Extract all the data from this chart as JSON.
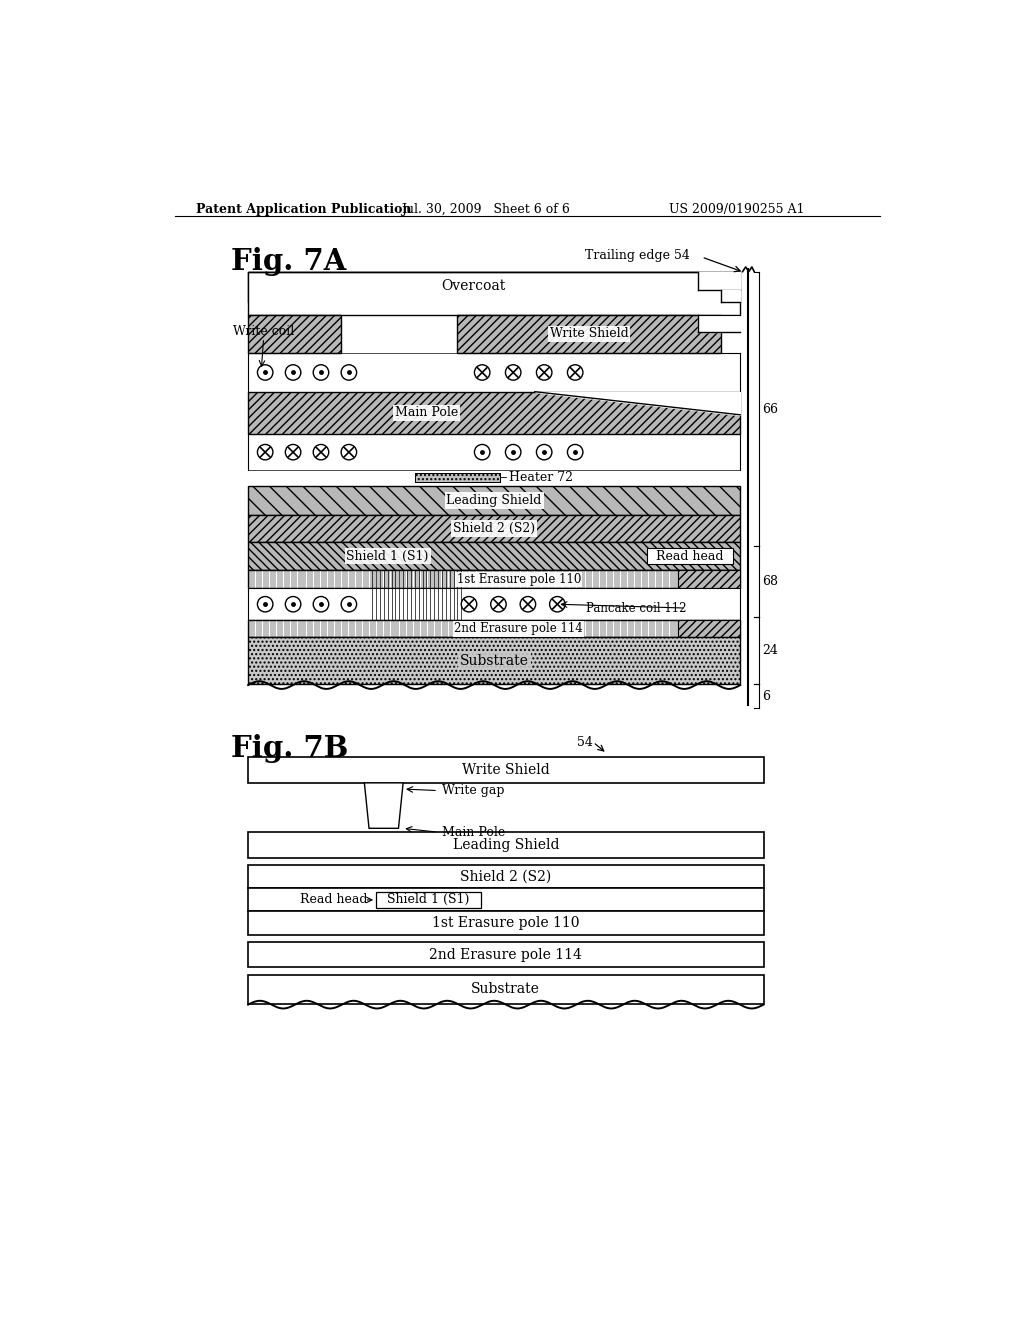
{
  "header_left": "Patent Application Publication",
  "header_mid": "Jul. 30, 2009   Sheet 6 of 6",
  "header_right": "US 2009/0190255 A1",
  "fig7a_label": "Fig. 7A",
  "fig7b_label": "Fig. 7B",
  "trailing_edge": "Trailing edge 54",
  "overcoat_label": "Overcoat",
  "write_shield_label": "Write Shield",
  "write_coil_label": "Write coil",
  "main_pole_label": "Main Pole",
  "heater_label": "Heater 72",
  "leading_shield_label": "Leading Shield",
  "shield2_label": "Shield 2 (S2)",
  "shield1_label": "Shield 1 (S1)",
  "read_head_label": "Read head",
  "ep1_label": "1st Erasure pole 110",
  "pancake_label": "Pancake coil 112",
  "ep2_label": "2nd Erasure pole 114",
  "substrate_label": "Substrate",
  "bracket_66": "66",
  "bracket_68": "68",
  "bracket_24": "24",
  "bracket_6": "6",
  "fig7b_54": "54",
  "write_gap_label": "Write gap",
  "main_pole_b_label": "Main Pole",
  "background": "#ffffff"
}
